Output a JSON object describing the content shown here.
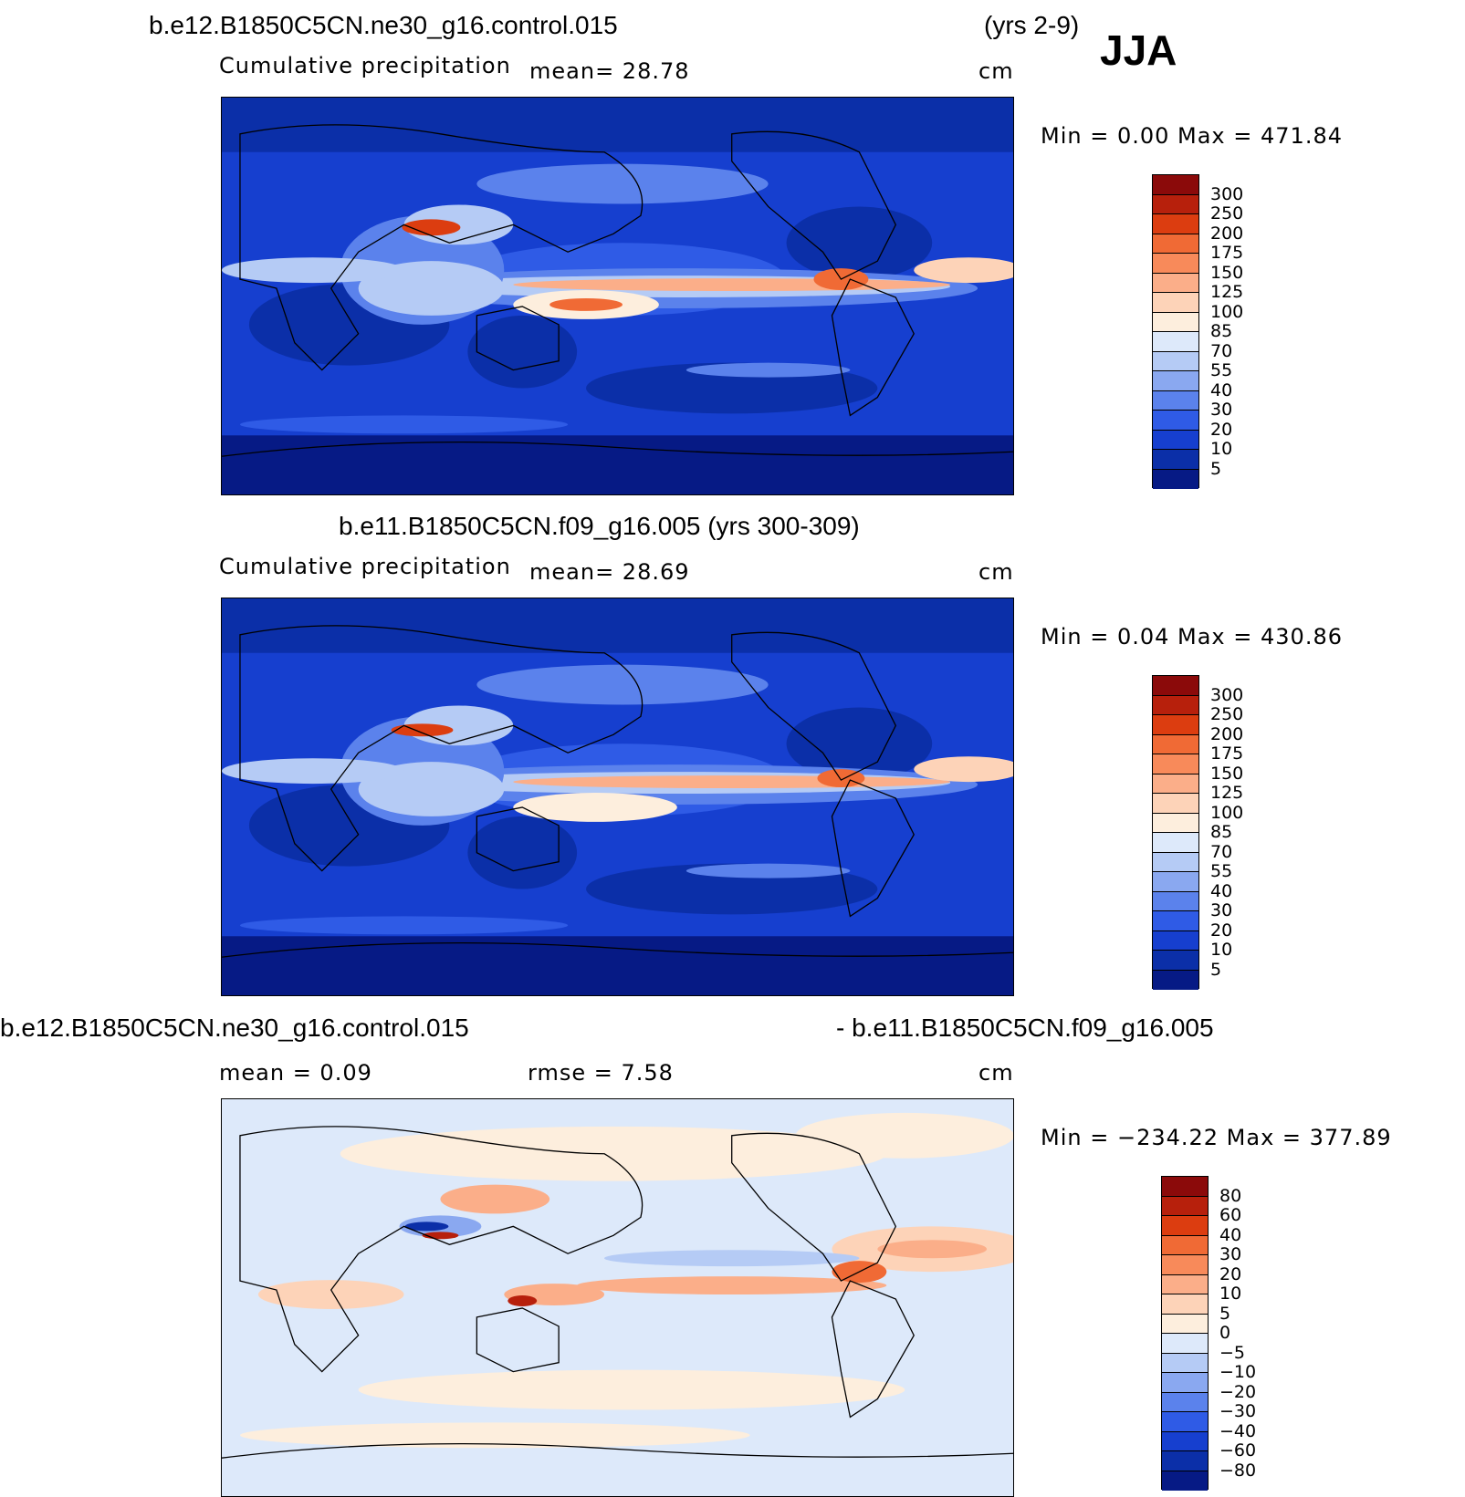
{
  "season": "JJA",
  "panels": [
    {
      "case_left": "b.e12.B1850C5CN.ne30_g16.control.015",
      "case_right": "(yrs 2-9)",
      "variable": "Cumulative precipitation",
      "stat1": "mean=   28.78",
      "units": "cm",
      "minmax": "Min =    0.00 Max = 471.84",
      "colorbar": {
        "labels": [
          "300",
          "250",
          "200",
          "175",
          "150",
          "125",
          "100",
          "85",
          "70",
          "55",
          "40",
          "30",
          "20",
          "10",
          "5"
        ],
        "colors": [
          "#8b0a0a",
          "#b7200c",
          "#dc3d10",
          "#f06a35",
          "#f88a5a",
          "#fbae89",
          "#fdd3b8",
          "#fdeedd",
          "#dde9fa",
          "#b5cbf5",
          "#8aa8f0",
          "#5b82ec",
          "#2f5be6",
          "#163fcf",
          "#0b2fa8",
          "#061a85"
        ]
      }
    },
    {
      "case_left": "b.e11.B1850C5CN.f09_g16.005 (yrs 300-309)",
      "variable": "Cumulative precipitation",
      "stat1": "mean=   28.69",
      "units": "cm",
      "minmax": "Min =    0.04 Max = 430.86",
      "colorbar": {
        "labels": [
          "300",
          "250",
          "200",
          "175",
          "150",
          "125",
          "100",
          "85",
          "70",
          "55",
          "40",
          "30",
          "20",
          "10",
          "5"
        ],
        "colors": [
          "#8b0a0a",
          "#b7200c",
          "#dc3d10",
          "#f06a35",
          "#f88a5a",
          "#fbae89",
          "#fdd3b8",
          "#fdeedd",
          "#dde9fa",
          "#b5cbf5",
          "#8aa8f0",
          "#5b82ec",
          "#2f5be6",
          "#163fcf",
          "#0b2fa8",
          "#061a85"
        ]
      }
    },
    {
      "case_left": "b.e12.B1850C5CN.ne30_g16.control.015",
      "case_right": "- b.e11.B1850C5CN.f09_g16.005",
      "stat1": "mean =    0.09",
      "stat2": "rmse =    7.58",
      "units": "cm",
      "minmax": "Min = −234.22 Max =  377.89",
      "colorbar": {
        "labels": [
          "80",
          "60",
          "40",
          "30",
          "20",
          "10",
          "5",
          "0",
          "−5",
          "−10",
          "−20",
          "−30",
          "−40",
          "−60",
          "−80"
        ],
        "colors": [
          "#8b0a0a",
          "#b7200c",
          "#dc3d10",
          "#f06a35",
          "#f88a5a",
          "#fbae89",
          "#fdd3b8",
          "#fdeedd",
          "#dde9fa",
          "#b5cbf5",
          "#8aa8f0",
          "#5b82ec",
          "#2f5be6",
          "#163fcf",
          "#0b2fa8",
          "#061a85"
        ]
      }
    }
  ]
}
